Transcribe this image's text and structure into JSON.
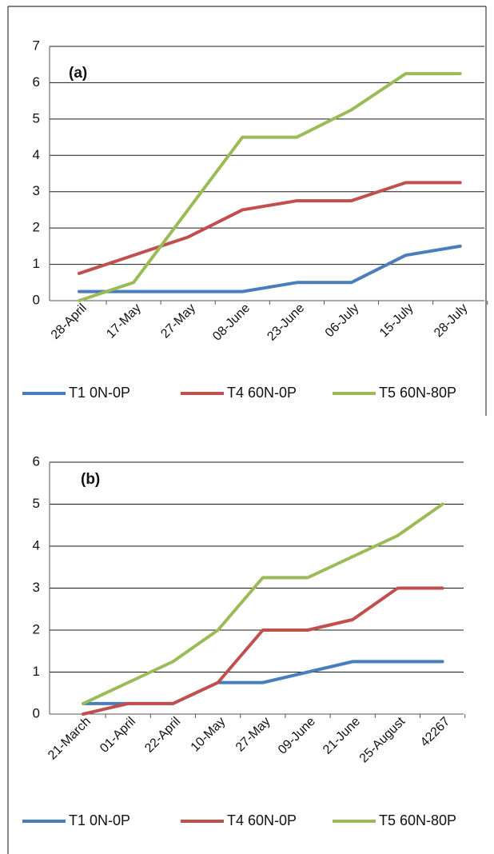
{
  "chart_data": [
    {
      "type": "line",
      "panel_label": "(a)",
      "categories": [
        "28-April",
        "17-May",
        "27-May",
        "08-June",
        "23-June",
        "06-July",
        "15-July",
        "28-July"
      ],
      "ylim": [
        0,
        7
      ],
      "yticks": [
        "0",
        "1",
        "2",
        "3",
        "4",
        "5",
        "6",
        "7"
      ],
      "grid": true,
      "legend_position": "bottom",
      "series": [
        {
          "name": "T1 0N-0P",
          "color": "#4a7ebb",
          "values": [
            0.25,
            0.25,
            0.25,
            0.25,
            0.5,
            0.5,
            1.25,
            1.5
          ]
        },
        {
          "name": "T4 60N-0P",
          "color": "#c0504d",
          "values": [
            0.75,
            1.25,
            1.75,
            2.5,
            2.75,
            2.75,
            3.25,
            3.25
          ]
        },
        {
          "name": "T5 60N-80P",
          "color": "#9bbb59",
          "values": [
            0,
            0.5,
            2.5,
            4.5,
            4.5,
            5.25,
            6.25,
            6.25
          ]
        }
      ]
    },
    {
      "type": "line",
      "panel_label": "(b)",
      "categories": [
        "21-March",
        "01-April",
        "22-April",
        "10-May",
        "27-May",
        "09-June",
        "21-June",
        "25-August",
        "42267"
      ],
      "ylim": [
        0,
        6
      ],
      "yticks": [
        "0",
        "1",
        "2",
        "3",
        "4",
        "5",
        "6"
      ],
      "grid": true,
      "legend_position": "bottom",
      "series": [
        {
          "name": "T1 0N-0P",
          "color": "#4a7ebb",
          "values": [
            0.25,
            0.25,
            0.25,
            0.75,
            0.75,
            1.0,
            1.25,
            1.25,
            1.25
          ]
        },
        {
          "name": "T4 60N-0P",
          "color": "#c0504d",
          "values": [
            0,
            0.25,
            0.25,
            0.75,
            2.0,
            2.0,
            2.25,
            3.0,
            3.0
          ]
        },
        {
          "name": "T5 60N-80P",
          "color": "#9bbb59",
          "values": [
            0.25,
            0.75,
            1.25,
            2.0,
            3.25,
            3.25,
            3.75,
            4.25,
            5.0
          ]
        }
      ]
    }
  ]
}
